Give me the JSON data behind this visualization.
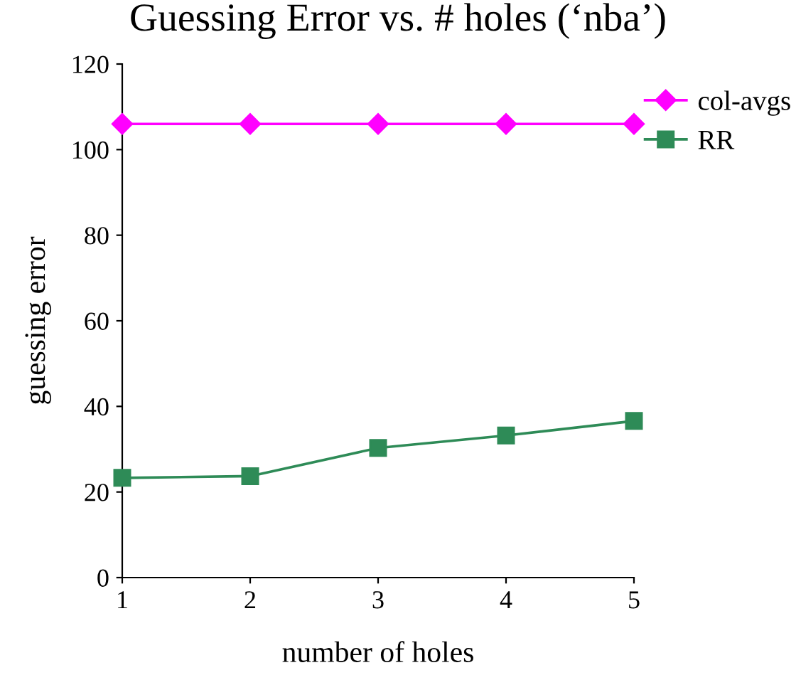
{
  "chart_data": {
    "type": "line",
    "title": "Guessing Error vs. # holes (‘nba’)",
    "xlabel": "number of holes",
    "ylabel": "guessing error",
    "x": [
      1,
      2,
      3,
      4,
      5
    ],
    "series": [
      {
        "name": "col-avgs",
        "color": "#ff00ff",
        "marker": "diamond",
        "values": [
          106,
          106,
          106,
          106,
          106
        ]
      },
      {
        "name": "RR",
        "color": "#2e8b57",
        "marker": "square",
        "values": [
          23.3,
          23.7,
          30.3,
          33.2,
          36.6
        ]
      }
    ],
    "xlim": [
      1,
      5
    ],
    "xticks": [
      1,
      2,
      3,
      4,
      5
    ],
    "ylim": [
      0,
      120
    ],
    "yticks": [
      0,
      20,
      40,
      60,
      80,
      100,
      120
    ],
    "grid": false,
    "legend": "top right",
    "line_style": "solid"
  }
}
